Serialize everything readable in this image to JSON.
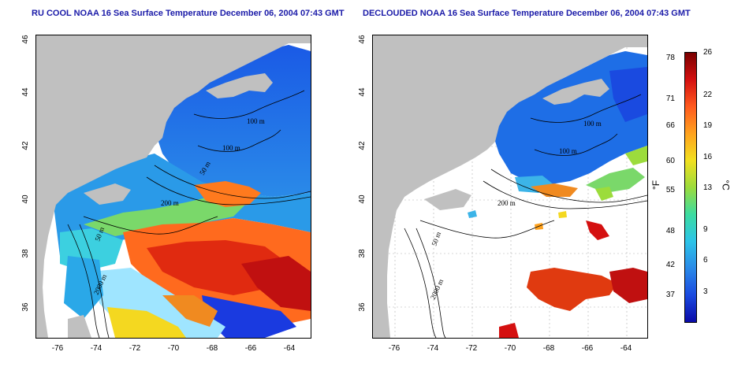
{
  "titles": {
    "left": "RU COOL NOAA 16 Sea Surface Temperature December 06, 2004 07:43 GMT",
    "right": "DECLOUDED NOAA 16 Sea Surface Temperature December 06, 2004 07:43 GMT"
  },
  "axes": {
    "lat_ticks": [
      "46",
      "44",
      "42",
      "40",
      "38",
      "36"
    ],
    "lon_ticks": [
      "-76",
      "-74",
      "-72",
      "-70",
      "-68",
      "-66",
      "-64"
    ]
  },
  "contour_labels": {
    "left": [
      "100 m",
      "100 m",
      "50 m",
      "200 m",
      "50 m",
      "2000 m"
    ],
    "right": [
      "100 m",
      "100 m",
      "200 m",
      "50 m",
      "2000 m"
    ]
  },
  "colorbar": {
    "fahrenheit_ticks": [
      "78",
      "71",
      "66",
      "60",
      "55",
      "48",
      "42",
      "37"
    ],
    "celsius_ticks": [
      "26",
      "22",
      "19",
      "16",
      "13",
      "9",
      "6",
      "3"
    ],
    "fahrenheit_unit": "°F",
    "celsius_unit": "°C",
    "colors": [
      "#7a0000",
      "#d41010",
      "#ff5a1e",
      "#ffa21e",
      "#f2e020",
      "#9cdc3c",
      "#3cdca0",
      "#2cc4e8",
      "#2a8ae8",
      "#1a4ae0",
      "#0a0aa8"
    ]
  },
  "colors": {
    "land": "#c0c0c0",
    "ocean_nodata": "#ffffff",
    "title": "#1a1aa8",
    "warm": "#e03a10",
    "cold": "#1e6ee6"
  }
}
